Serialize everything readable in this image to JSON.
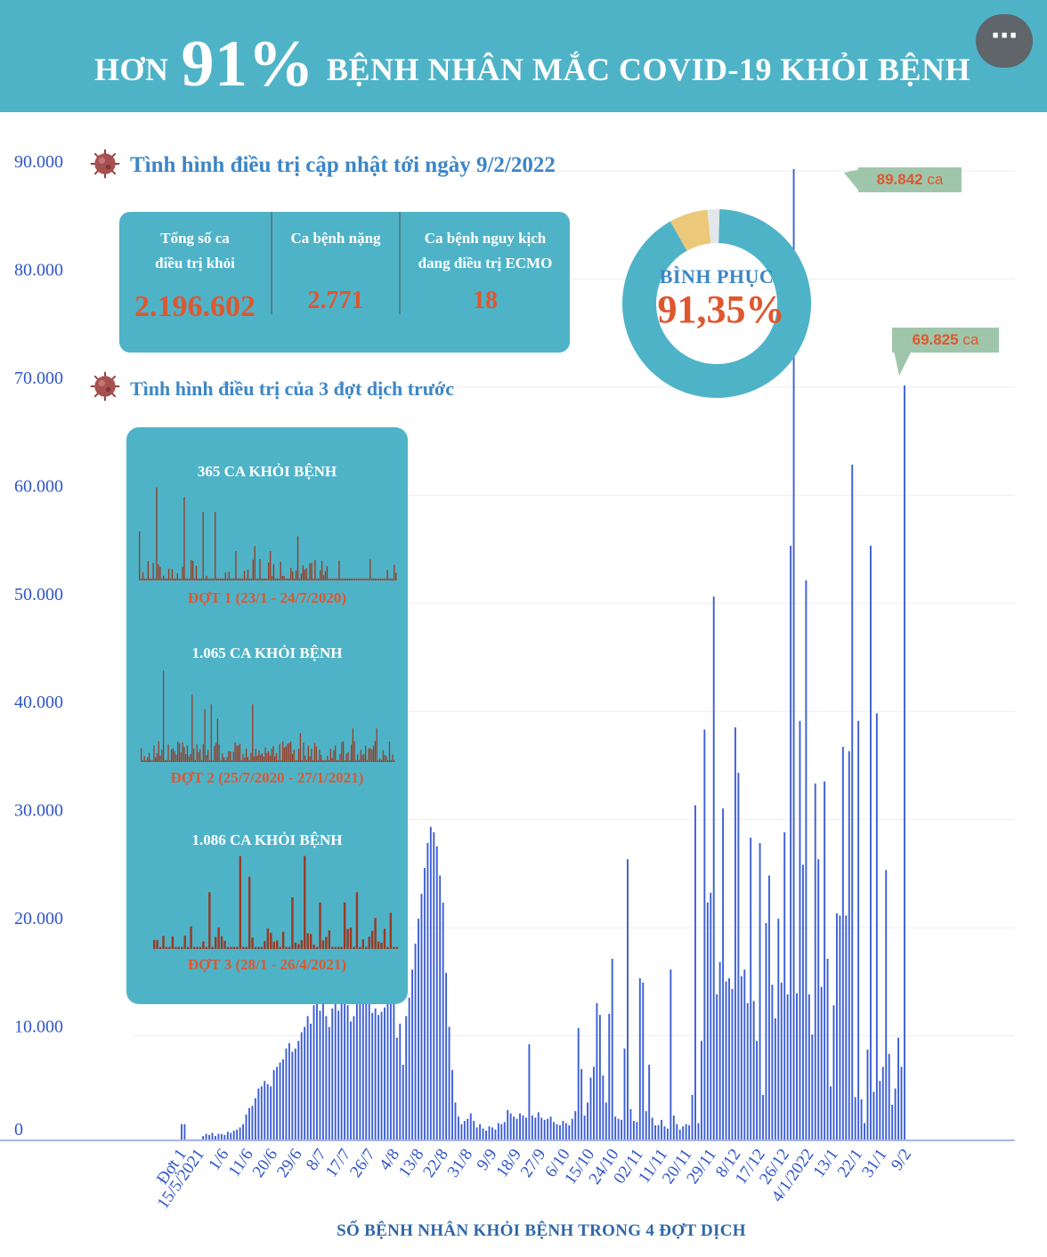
{
  "header": {
    "title_prefix": "HƠN",
    "title_big": "91%",
    "title_suffix": "BỆNH NHÂN MẮC COVID-19 KHỎI BỆNH",
    "menu_icon": "⋯"
  },
  "section1": {
    "heading": "Tình hình điều trị cập nhật tới ngày 9/2/2022"
  },
  "section2": {
    "heading": "Tình hình điều trị của 3 đợt dịch trước"
  },
  "stats": [
    {
      "label_line1": "Tổng số ca",
      "label_line2": "điều trị khỏi",
      "value": "2.196.602"
    },
    {
      "label_line1": "Ca bệnh nặng",
      "label_line2": "",
      "value": "2.771"
    },
    {
      "label_line1": "Ca bệnh nguy kịch",
      "label_line2": "đang điều trị ECMO",
      "value": "18"
    }
  ],
  "donut": {
    "label": "BÌNH PHỤC",
    "value_text": "91,35%",
    "segments": [
      {
        "name": "recovered",
        "fraction": 0.9135,
        "color": "#4fb3c8"
      },
      {
        "name": "treating",
        "fraction": 0.066,
        "color": "#ecc97a"
      },
      {
        "name": "other",
        "fraction": 0.0205,
        "color": "#e4e7e9"
      }
    ]
  },
  "waves": [
    {
      "title": "365 CA KHỎI BỆNH",
      "subtitle": "ĐỢT 1 (23/1 - 24/7/2020)"
    },
    {
      "title": "1.065 CA KHỎI BỆNH",
      "subtitle": "ĐỢT 2 (25/7/2020 - 27/1/2021)"
    },
    {
      "title": "1.086 CA KHỎI BỆNH",
      "subtitle": "ĐỢT 3 (28/1 - 26/4/2021)"
    }
  ],
  "callouts": {
    "peak1": {
      "value": "89.842",
      "unit": "ca"
    },
    "peak2": {
      "value": "69.825",
      "unit": "ca"
    }
  },
  "colors": {
    "bar": "#3d5fd6",
    "mini_bar": "#9a3a22",
    "accent": "#e0562d",
    "teal": "#4fb3c8"
  },
  "chart_data": {
    "type": "bar",
    "title": "",
    "xlabel": "SỐ BỆNH NHÂN KHỎI BỆNH TRONG 4 ĐỢT DỊCH",
    "ylabel": "",
    "ylim": [
      0,
      90000
    ],
    "yticks": [
      0,
      10000,
      20000,
      30000,
      40000,
      50000,
      60000,
      70000,
      80000,
      90000
    ],
    "ytick_labels": [
      "0",
      "10.000",
      "20.000",
      "30.000",
      "40.000",
      "50.000",
      "60.000",
      "70.000",
      "80.000",
      "90.000"
    ],
    "xtick_labels": [
      "Đợt 1",
      "15/5/2021",
      "1/6",
      "11/6",
      "20/6",
      "29/6",
      "8/7",
      "17/7",
      "26/7",
      "4/8",
      "13/8",
      "22/8",
      "31/8",
      "9/9",
      "18/9",
      "27/9",
      "6/10",
      "15/10",
      "24/10",
      "02/11",
      "11/11",
      "20/11",
      "29/11",
      "8/12",
      "17/12",
      "26/12",
      "4/1/2022",
      "13/1",
      "22/1",
      "31/1",
      "9/2"
    ],
    "values": [
      1500,
      1500,
      100,
      100,
      100,
      100,
      100,
      400,
      600,
      500,
      700,
      400,
      600,
      600,
      500,
      800,
      700,
      900,
      1000,
      1200,
      1500,
      2400,
      3000,
      3200,
      3900,
      4800,
      5000,
      5500,
      5200,
      5000,
      6500,
      6800,
      7200,
      7500,
      8500,
      9000,
      8200,
      8500,
      9200,
      10000,
      10500,
      11500,
      10800,
      12500,
      13200,
      12000,
      12800,
      11500,
      10500,
      12200,
      13500,
      12000,
      14000,
      13200,
      12500,
      11000,
      11500,
      15000,
      14800,
      16500,
      15200,
      12800,
      11800,
      12200,
      11600,
      11900,
      12300,
      14200,
      15500,
      13500,
      9500,
      10800,
      7000,
      11500,
      13200,
      15800,
      18200,
      20500,
      22800,
      25200,
      27500,
      29000,
      28500,
      27200,
      24500,
      22000,
      15500,
      10500,
      6500,
      3500,
      2200,
      1500,
      1800,
      2000,
      2500,
      1800,
      1200,
      1500,
      1100,
      900,
      1300,
      1200,
      1000,
      1600,
      1500,
      1700,
      2800,
      2500,
      2200,
      2000,
      2500,
      2300,
      2100,
      8900,
      2300,
      2100,
      2600,
      2100,
      1900,
      2000,
      2200,
      1700,
      1500,
      1400,
      1800,
      1600,
      1400,
      2000,
      2700,
      10400,
      6600,
      2300,
      3500,
      5800,
      6800,
      12700,
      11600,
      6000,
      3500,
      11700,
      16800,
      2200,
      2000,
      1900,
      8500,
      26000,
      2900,
      1800,
      1700,
      15000,
      14600,
      2700,
      7000,
      2100,
      1400,
      1400,
      1900,
      1300,
      1100,
      15800,
      2300,
      1500,
      1000,
      1300,
      1500,
      1400,
      4200,
      31000,
      1600,
      9200,
      38000,
      22000,
      22900,
      50300,
      13500,
      16500,
      30700,
      14700,
      15000,
      14000,
      38200,
      34000,
      15200,
      15800,
      12700,
      28000,
      12900,
      9200,
      27500,
      4200,
      20100,
      24500,
      14400,
      11300,
      20500,
      14600,
      28500,
      13500,
      55000,
      89842,
      13600,
      38800,
      25500,
      51800,
      13500,
      9800,
      33000,
      26000,
      14200,
      33200,
      16800,
      5000,
      12500,
      21000,
      20800,
      36400,
      20800,
      36000,
      62500,
      4000,
      38800,
      3800,
      1600,
      8400,
      55000,
      4500,
      39500,
      5500,
      6800,
      25000,
      8000,
      3300,
      4800,
      9500,
      6800,
      69825
    ]
  }
}
